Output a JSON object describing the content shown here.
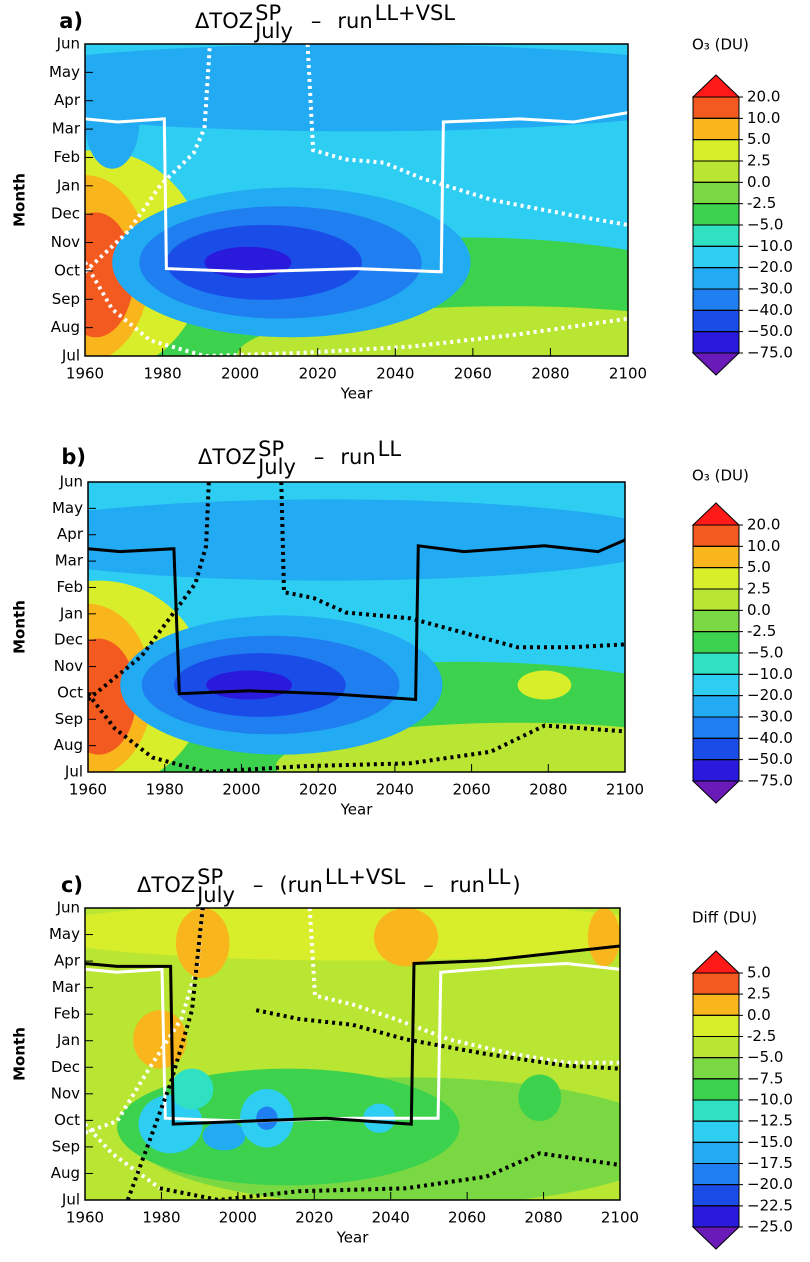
{
  "chart_data": [
    {
      "type": "contour",
      "panel": "a)",
      "title": [
        {
          "text": "ΔTOZ"
        },
        {
          "text": "SP",
          "pos": "sup"
        },
        {
          "text": "July",
          "pos": "sub"
        },
        {
          "text": "–"
        },
        {
          "text": "run"
        },
        {
          "text": "LL+VSL",
          "pos": "sup"
        }
      ],
      "xlabel": "Year",
      "ylabel": "Month",
      "categories": [
        "Jul",
        "Aug",
        "Sep",
        "Oct",
        "Nov",
        "Dec",
        "Jan",
        "Feb",
        "Mar",
        "Apr",
        "May",
        "Jun"
      ],
      "xlim": [
        1960,
        2100
      ],
      "xticks": [
        1960,
        1980,
        2000,
        2020,
        2040,
        2060,
        2080,
        2100
      ],
      "colorbar": {
        "title": "O₃ (DU)",
        "levels": [
          {
            "value": 20,
            "label": "20.0"
          },
          {
            "value": 10,
            "label": "10.0"
          },
          {
            "value": 5,
            "label": "5.0"
          },
          2.5,
          {
            "value": 0,
            "label": "0.0"
          },
          -2.5,
          {
            "value": -5,
            "label": "−5.0"
          },
          {
            "value": -10,
            "label": "−10.0"
          },
          {
            "value": -20,
            "label": "−20.0"
          },
          {
            "value": -30,
            "label": "−30.0"
          },
          {
            "value": -40,
            "label": "−40.0"
          },
          {
            "value": -50,
            "label": "−50.0"
          },
          {
            "value": -75,
            "label": "−75.0"
          }
        ],
        "colors": [
          "#ff1a1a",
          "#f25a1f",
          "#f8b51c",
          "#d8ee2a",
          "#b8e632",
          "#7ad943",
          "#3cd24e",
          "#2fe0c2",
          "#2ecdf2",
          "#22aaf2",
          "#1f7ff0",
          "#1a4de8",
          "#2a1adb",
          "#6a1ab8"
        ]
      }
    },
    {
      "type": "contour",
      "panel": "b)",
      "title": [
        {
          "text": "ΔTOZ"
        },
        {
          "text": "SP",
          "pos": "sup"
        },
        {
          "text": "July",
          "pos": "sub"
        },
        {
          "text": "–"
        },
        {
          "text": "run"
        },
        {
          "text": "LL",
          "pos": "sup"
        }
      ],
      "xlabel": "Year",
      "ylabel": "Month",
      "categories": [
        "Jul",
        "Aug",
        "Sep",
        "Oct",
        "Nov",
        "Dec",
        "Jan",
        "Feb",
        "Mar",
        "Apr",
        "May",
        "Jun"
      ],
      "xlim": [
        1960,
        2100
      ],
      "xticks": [
        1960,
        1980,
        2000,
        2020,
        2040,
        2060,
        2080,
        2100
      ],
      "colorbar": {
        "title": "O₃ (DU)",
        "levels": [
          {
            "value": 20,
            "label": "20.0"
          },
          {
            "value": 10,
            "label": "10.0"
          },
          {
            "value": 5,
            "label": "5.0"
          },
          2.5,
          {
            "value": 0,
            "label": "0.0"
          },
          -2.5,
          {
            "value": -5,
            "label": "−5.0"
          },
          {
            "value": -10,
            "label": "−10.0"
          },
          {
            "value": -20,
            "label": "−20.0"
          },
          {
            "value": -30,
            "label": "−30.0"
          },
          {
            "value": -40,
            "label": "−40.0"
          },
          {
            "value": -50,
            "label": "−50.0"
          },
          {
            "value": -75,
            "label": "−75.0"
          }
        ],
        "colors": [
          "#ff1a1a",
          "#f25a1f",
          "#f8b51c",
          "#d8ee2a",
          "#b8e632",
          "#7ad943",
          "#3cd24e",
          "#2fe0c2",
          "#2ecdf2",
          "#22aaf2",
          "#1f7ff0",
          "#1a4de8",
          "#2a1adb",
          "#6a1ab8"
        ]
      }
    },
    {
      "type": "contour",
      "panel": "c)",
      "title": [
        {
          "text": "ΔTOZ"
        },
        {
          "text": "SP",
          "pos": "sup"
        },
        {
          "text": "July",
          "pos": "sub"
        },
        {
          "text": "–"
        },
        {
          "text": "(run"
        },
        {
          "text": "LL+VSL",
          "pos": "sup"
        },
        {
          "text": "–"
        },
        {
          "text": "run"
        },
        {
          "text": "LL",
          "pos": "sup"
        },
        {
          "text": ")"
        }
      ],
      "xlabel": "Year",
      "ylabel": "Month",
      "categories": [
        "Jul",
        "Aug",
        "Sep",
        "Oct",
        "Nov",
        "Dec",
        "Jan",
        "Feb",
        "Mar",
        "Apr",
        "May",
        "Jun"
      ],
      "xlim": [
        1960,
        2100
      ],
      "xticks": [
        1960,
        1980,
        2000,
        2020,
        2040,
        2060,
        2080,
        2100
      ],
      "colorbar": {
        "title": "Diff (DU)",
        "levels": [
          {
            "value": 5,
            "label": "5.0"
          },
          2.5,
          {
            "value": 0,
            "label": "0.0"
          },
          -2.5,
          {
            "value": -5,
            "label": "−5.0"
          },
          {
            "value": -7.5,
            "label": "−7.5"
          },
          {
            "value": -10,
            "label": "−10.0"
          },
          {
            "value": -12.5,
            "label": "−12.5"
          },
          {
            "value": -15,
            "label": "−15.0"
          },
          {
            "value": -17.5,
            "label": "−17.5"
          },
          {
            "value": -20,
            "label": "−20.0"
          },
          {
            "value": -22.5,
            "label": "−22.5"
          },
          {
            "value": -25,
            "label": "−25.0"
          }
        ],
        "colors": [
          "#ff1a1a",
          "#f25a1f",
          "#f8b51c",
          "#d8ee2a",
          "#b8e632",
          "#7ad943",
          "#3cd24e",
          "#2fe0c2",
          "#2ecdf2",
          "#22aaf2",
          "#1f7ff0",
          "#1a4de8",
          "#2a1adb",
          "#6a1ab8"
        ]
      }
    }
  ]
}
